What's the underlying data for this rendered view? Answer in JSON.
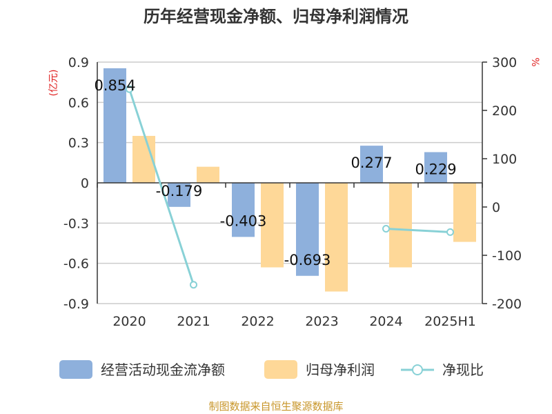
{
  "chart_data": {
    "type": "bar",
    "title": "历年经营现金净额、归母净利润情况",
    "categories": [
      "2020",
      "2021",
      "2022",
      "2023",
      "2024",
      "2025H1"
    ],
    "series": [
      {
        "name": "经营活动现金流净额",
        "kind": "bar",
        "axis": "left",
        "color": "#8eb0dc",
        "values": [
          0.854,
          -0.179,
          -0.403,
          -0.693,
          0.277,
          0.229
        ],
        "labels": [
          "0.854",
          "-0.179",
          "-0.403",
          "-0.693",
          "0.277",
          "0.229"
        ]
      },
      {
        "name": "归母净利润",
        "kind": "bar",
        "axis": "left",
        "color": "#fed898",
        "values": [
          0.35,
          0.12,
          -0.63,
          -0.81,
          -0.63,
          -0.44
        ]
      },
      {
        "name": "净现比",
        "kind": "line",
        "axis": "right",
        "color": "#88d1d6",
        "values": [
          244,
          -161,
          null,
          null,
          -45,
          -52
        ]
      }
    ],
    "left_axis": {
      "unit": "(亿元)",
      "ylim": [
        -0.9,
        0.9
      ],
      "ticks": [
        "0.9",
        "0.6",
        "0.3",
        "0",
        "-0.3",
        "-0.6",
        "-0.9"
      ],
      "tick_values": [
        0.9,
        0.6,
        0.3,
        0,
        -0.3,
        -0.6,
        -0.9
      ]
    },
    "right_axis": {
      "unit": "%",
      "ylim": [
        -200,
        300
      ],
      "ticks": [
        "300",
        "200",
        "100",
        "0",
        "-100",
        "-200"
      ],
      "tick_values": [
        300,
        200,
        100,
        0,
        -100,
        -200
      ]
    },
    "grid": true,
    "legend_position": "bottom"
  },
  "source": "制图数据来自恒生聚源数据库"
}
